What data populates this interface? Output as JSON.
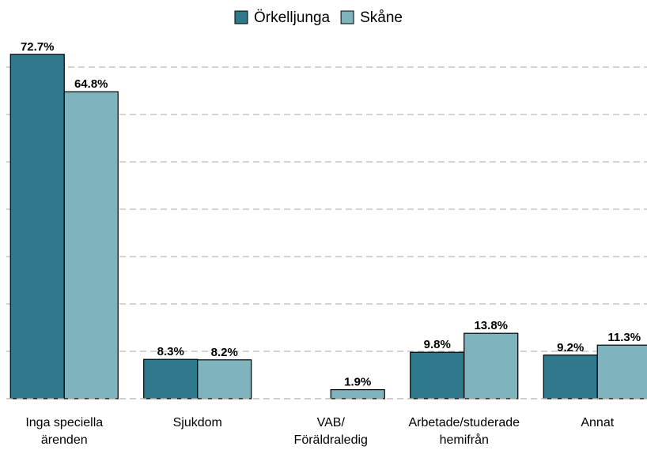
{
  "chart_data": {
    "type": "bar",
    "categories": [
      "Inga speciella\närenden",
      "Sjukdom",
      "VAB/\nFöräldraledig",
      "Arbetade/studerade\nhemifrån",
      "Annat"
    ],
    "series": [
      {
        "name": "Örkelljunga",
        "color": "#2e7a8c",
        "values": [
          72.7,
          8.3,
          null,
          9.8,
          9.2
        ],
        "value_labels": [
          "72.7%",
          "8.3%",
          null,
          "9.8%",
          "9.2%"
        ]
      },
      {
        "name": "Skåne",
        "color": "#7fb3bd",
        "values": [
          64.8,
          8.2,
          1.9,
          13.8,
          11.3
        ],
        "value_labels": [
          "64.8%",
          "8.2%",
          "1.9%",
          "13.8%",
          "11.3%"
        ]
      }
    ],
    "ylim": [
      0,
      75
    ],
    "yticks": [
      0,
      10,
      20,
      30,
      40,
      50,
      60,
      70
    ],
    "grid": true,
    "legend": "top"
  }
}
